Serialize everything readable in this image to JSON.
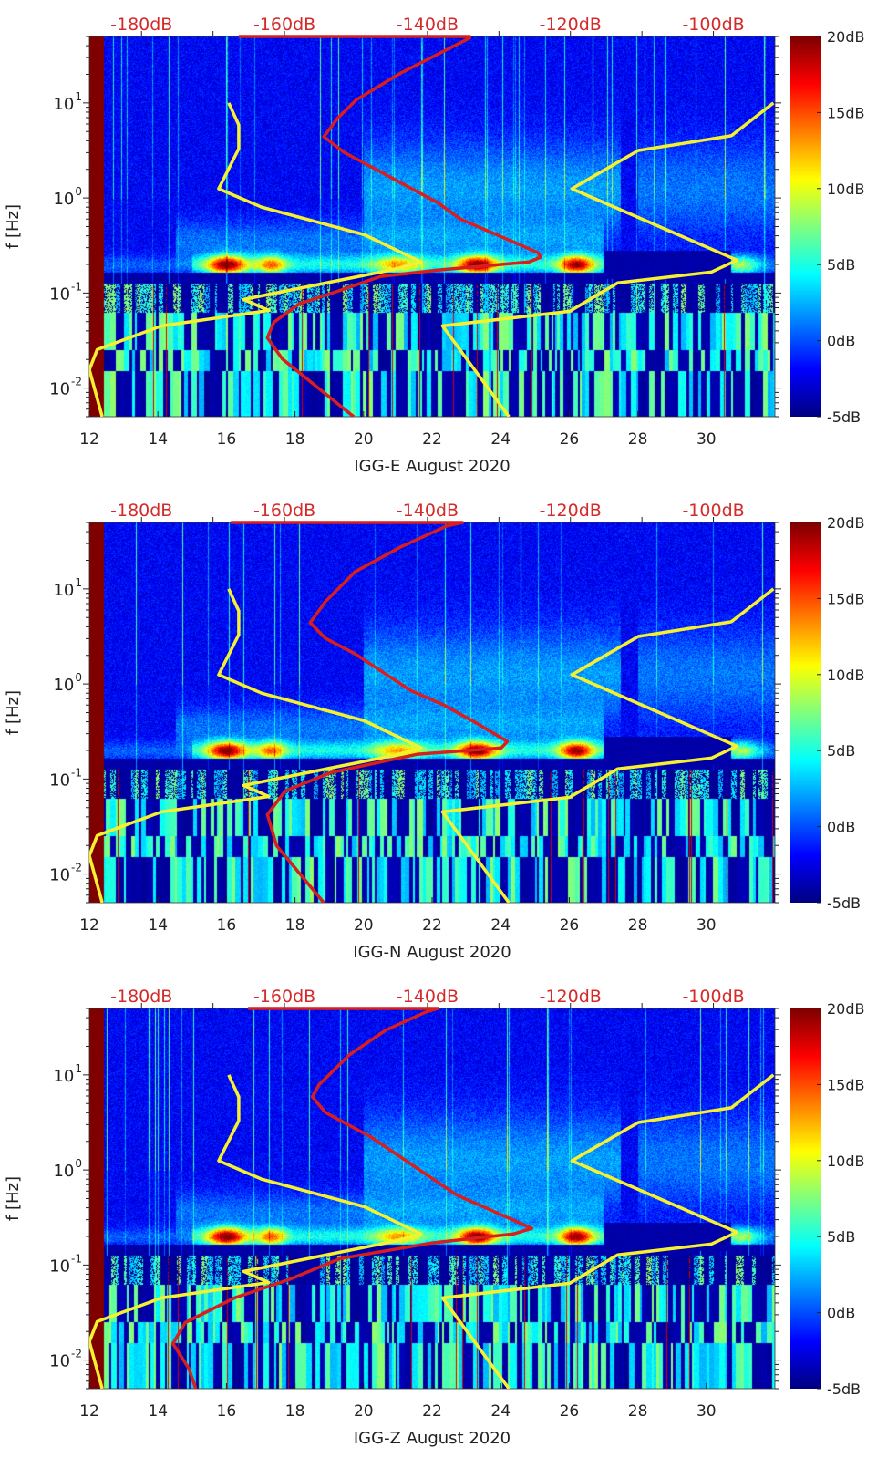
{
  "chart_data": {
    "type": "heatmap",
    "ylabel": "f [Hz]",
    "xlim": [
      12,
      32
    ],
    "xticks": [
      12,
      14,
      16,
      18,
      20,
      22,
      24,
      26,
      28,
      30
    ],
    "xtick_labels": [
      "12",
      "14",
      "16",
      "18",
      "20",
      "22",
      "24",
      "26",
      "28",
      "30"
    ],
    "yscale": "log",
    "ylim": [
      0.005,
      50
    ],
    "yticks": [
      0.01,
      0.1,
      1,
      10
    ],
    "ytick_labels": [
      {
        "base": "10",
        "exp": "-2"
      },
      {
        "base": "10",
        "exp": "-1"
      },
      {
        "base": "10",
        "exp": "0"
      },
      {
        "base": "10",
        "exp": "1"
      }
    ],
    "top_axis": {
      "xlim": [
        -187.3,
        -91.4
      ],
      "ticks": [
        -180,
        -160,
        -140,
        -120,
        -100
      ],
      "tick_labels": [
        "-180dB",
        "-160dB",
        "-140dB",
        "-120dB",
        "-100dB"
      ],
      "color": "#d42a2a"
    },
    "colorbar": {
      "range": [
        -5,
        20
      ],
      "ticks": [
        20,
        15,
        10,
        5,
        0,
        -5
      ],
      "tick_labels": [
        "20dB",
        "15dB",
        "10dB",
        "5dB",
        "0dB",
        "-5dB"
      ],
      "colormap": "jet"
    },
    "low_noise_model": {
      "color": "#f5f030",
      "points": [
        [
          -167.8,
          10
        ],
        [
          -166.4,
          5.87
        ],
        [
          -166.4,
          3.3
        ],
        [
          -169.2,
          1.25
        ],
        [
          -163.2,
          0.8
        ],
        [
          -148.8,
          0.41
        ],
        [
          -140.9,
          0.212
        ],
        [
          -144.6,
          0.178
        ],
        [
          -165.7,
          0.0857
        ],
        [
          -162.2,
          0.0656
        ],
        [
          -177.2,
          0.0451
        ],
        [
          -186.2,
          0.0254
        ],
        [
          -187.3,
          0.0156
        ],
        [
          -185.5,
          0.005
        ]
      ]
    },
    "high_noise_model": {
      "color": "#f5f030",
      "points": [
        [
          -91.6,
          10
        ],
        [
          -97.5,
          4.51
        ],
        [
          -110.5,
          3.16
        ],
        [
          -119.8,
          1.25
        ],
        [
          -96.7,
          0.222
        ],
        [
          -100.3,
          0.166
        ],
        [
          -113.4,
          0.128
        ],
        [
          -120.1,
          0.0643
        ],
        [
          -137.9,
          0.0451
        ],
        [
          -128.6,
          0.005
        ]
      ]
    },
    "panels": [
      {
        "xlabel": "IGG-E August 2020",
        "psd_color": "#d81e1e",
        "psd_points": [
          [
            -166.4,
            50
          ],
          [
            -134.1,
            50
          ],
          [
            -134.1,
            48.2
          ],
          [
            -143.7,
            20.7
          ],
          [
            -150.0,
            10.7
          ],
          [
            -152.6,
            6.87
          ],
          [
            -154.5,
            4.41
          ],
          [
            -151.7,
            3.03
          ],
          [
            -138.6,
            0.895
          ],
          [
            -135.4,
            0.601
          ],
          [
            -124.5,
            0.265
          ],
          [
            -124.2,
            0.237
          ],
          [
            -125.8,
            0.212
          ],
          [
            -138.6,
            0.174
          ],
          [
            -146.6,
            0.149
          ],
          [
            -153.0,
            0.102
          ],
          [
            -158.0,
            0.0767
          ],
          [
            -161.5,
            0.0492
          ],
          [
            -162.4,
            0.0338
          ],
          [
            -160.3,
            0.0203
          ],
          [
            -150.3,
            0.005
          ]
        ]
      },
      {
        "xlabel": "IGG-N August 2020",
        "psd_color": "#d81e1e",
        "psd_points": [
          [
            -167.5,
            50
          ],
          [
            -135.1,
            50
          ],
          [
            -137.3,
            46.0
          ],
          [
            -143.7,
            27.7
          ],
          [
            -150.1,
            15.2
          ],
          [
            -154.3,
            7.33
          ],
          [
            -156.4,
            4.41
          ],
          [
            -154.3,
            3.03
          ],
          [
            -150.1,
            2.07
          ],
          [
            -142.4,
            0.857
          ],
          [
            -137.7,
            0.601
          ],
          [
            -133.1,
            0.386
          ],
          [
            -128.8,
            0.248
          ],
          [
            -129.7,
            0.212
          ],
          [
            -141.5,
            0.182
          ],
          [
            -153.5,
            0.117
          ],
          [
            -159.9,
            0.075
          ],
          [
            -162.4,
            0.0422
          ],
          [
            -161.1,
            0.0199
          ],
          [
            -154.5,
            0.005
          ]
        ]
      },
      {
        "xlabel": "IGG-Z August 2020",
        "psd_color": "#d81e1e",
        "psd_points": [
          [
            -165.1,
            50
          ],
          [
            -138.5,
            50
          ],
          [
            -140.2,
            46.0
          ],
          [
            -145.8,
            29.6
          ],
          [
            -150.9,
            16.3
          ],
          [
            -155.2,
            7.83
          ],
          [
            -156.1,
            5.87
          ],
          [
            -154.3,
            4.04
          ],
          [
            -147.9,
            2.22
          ],
          [
            -136.0,
            0.55
          ],
          [
            -125.4,
            0.243
          ],
          [
            -128.0,
            0.212
          ],
          [
            -139.5,
            0.17
          ],
          [
            -152.2,
            0.117
          ],
          [
            -159.4,
            0.0702
          ],
          [
            -167.0,
            0.0451
          ],
          [
            -173.9,
            0.0248
          ],
          [
            -175.6,
            0.0149
          ],
          [
            -173.4,
            0.0082
          ],
          [
            -172.4,
            0.005
          ]
        ]
      }
    ]
  }
}
